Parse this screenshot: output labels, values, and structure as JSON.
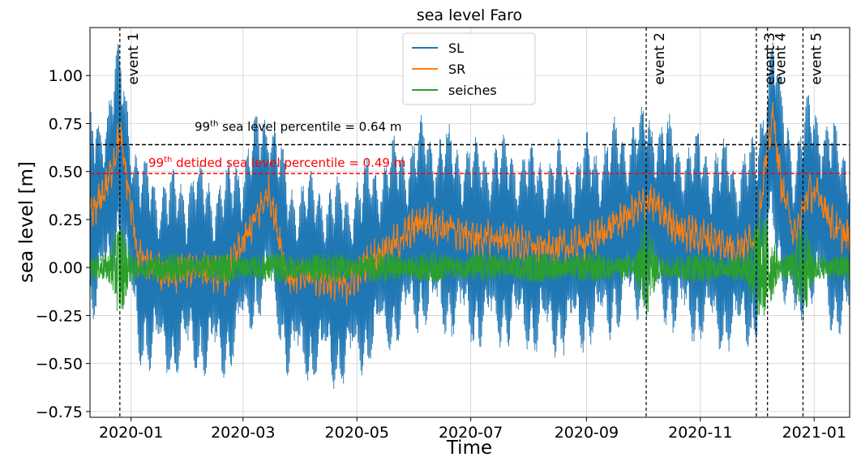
{
  "chart_data": {
    "type": "line",
    "title": "sea level Faro",
    "xlabel": "Time",
    "ylabel": "sea level [m]",
    "xlim": [
      "2019-12-10",
      "2021-01-20"
    ],
    "ylim": [
      -0.78,
      1.25
    ],
    "x_ticks": [
      "2020-01",
      "2020-03",
      "2020-05",
      "2020-07",
      "2020-09",
      "2020-11",
      "2021-01"
    ],
    "y_ticks": [
      -0.75,
      -0.5,
      -0.25,
      0.0,
      0.25,
      0.5,
      0.75,
      1.0
    ],
    "y_tick_labels": [
      "−0.75",
      "−0.50",
      "−0.25",
      "0.00",
      "0.25",
      "0.50",
      "0.75",
      "1.00"
    ],
    "grid": true,
    "legend_placement": "top-center",
    "series": [
      {
        "name": "SL",
        "color": "#1f77b4",
        "tidal_amplitude_m": 0.55,
        "approx_range": [
          -0.7,
          1.08
        ]
      },
      {
        "name": "SR",
        "color": "#ff7f0e",
        "approx_range": [
          -0.25,
          0.95
        ],
        "envelope": [
          [
            "2019-12-10",
            0.25
          ],
          [
            "2019-12-20",
            0.45
          ],
          [
            "2019-12-26",
            0.7
          ],
          [
            "2020-01-05",
            0.05
          ],
          [
            "2020-01-20",
            -0.05
          ],
          [
            "2020-02-05",
            0.0
          ],
          [
            "2020-02-20",
            -0.05
          ],
          [
            "2020-03-05",
            0.2
          ],
          [
            "2020-03-15",
            0.4
          ],
          [
            "2020-03-25",
            -0.05
          ],
          [
            "2020-04-10",
            -0.05
          ],
          [
            "2020-04-25",
            -0.1
          ],
          [
            "2020-05-10",
            0.05
          ],
          [
            "2020-05-25",
            0.15
          ],
          [
            "2020-06-05",
            0.25
          ],
          [
            "2020-06-20",
            0.2
          ],
          [
            "2020-07-05",
            0.15
          ],
          [
            "2020-07-20",
            0.15
          ],
          [
            "2020-08-05",
            0.1
          ],
          [
            "2020-08-20",
            0.1
          ],
          [
            "2020-09-05",
            0.15
          ],
          [
            "2020-09-20",
            0.25
          ],
          [
            "2020-10-05",
            0.35
          ],
          [
            "2020-10-20",
            0.2
          ],
          [
            "2020-11-05",
            0.15
          ],
          [
            "2020-11-20",
            0.1
          ],
          [
            "2020-12-01",
            0.15
          ],
          [
            "2020-12-06",
            0.55
          ],
          [
            "2020-12-10",
            0.8
          ],
          [
            "2020-12-14",
            0.45
          ],
          [
            "2020-12-22",
            0.15
          ],
          [
            "2020-12-29",
            0.4
          ],
          [
            "2021-01-05",
            0.35
          ],
          [
            "2021-01-12",
            0.2
          ],
          [
            "2021-01-20",
            0.15
          ]
        ]
      },
      {
        "name": "seiches",
        "color": "#2ca02c",
        "approx_range": [
          -0.35,
          0.3
        ]
      }
    ],
    "reference_lines": [
      {
        "label_sup": "th",
        "label_pre": "99",
        "label_post": " sea level percentile = 0.64 m",
        "value": 0.64,
        "color": "#000000",
        "style": "dashed"
      },
      {
        "label_sup": "th",
        "label_pre": "99",
        "label_post": " detided sea level percentile = 0.49 m",
        "value": 0.49,
        "color": "#ff0000",
        "style": "dashed"
      }
    ],
    "events": [
      {
        "label": "event 1",
        "date": "2019-12-26"
      },
      {
        "label": "event 2",
        "date": "2020-10-03"
      },
      {
        "label": "event 3",
        "date": "2020-12-01"
      },
      {
        "label": "event 4",
        "date": "2020-12-07"
      },
      {
        "label": "event 5",
        "date": "2020-12-26"
      }
    ]
  }
}
